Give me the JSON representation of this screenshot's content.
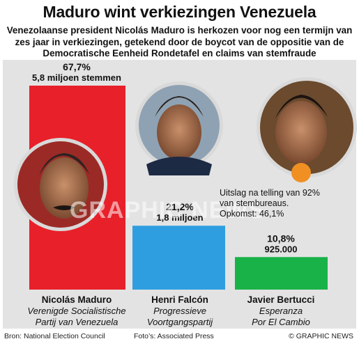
{
  "header": {
    "title": "Maduro wint verkiezingen Venezuela",
    "subtitle_lines": [
      "Venezolaanse president Nicolás Maduro is herkozen voor nog een termijn van",
      "zes jaar in verkiezingen, getekend door de boycot van de oppositie van de",
      "Democratische Eenheid Rondetafel en claims van stemfraude"
    ]
  },
  "chart_data": {
    "type": "bar",
    "categories": [
      "Nicolás Maduro",
      "Henri Falcón",
      "Javier Bertucci"
    ],
    "values": [
      67.7,
      21.2,
      10.8
    ],
    "value_labels": [
      "67,7%",
      "21,2%",
      "10,8%"
    ],
    "vote_labels": [
      "5,8 miljoen stemmen",
      "1,8 miljoen",
      "925.000"
    ],
    "parties": [
      [
        "Verenigde Socialistische",
        "Partij van Venezuela"
      ],
      [
        "Progressieve",
        "Voortgangspartij"
      ],
      [
        "Esperanza",
        "Por El Cambio"
      ]
    ],
    "colors": [
      "#e8202a",
      "#2e9ee0",
      "#19b248"
    ],
    "ylim": [
      0,
      67.7
    ]
  },
  "note": {
    "lines": [
      "Uitslag na telling van 92%",
      "van stembureaus.",
      "Opkomst: 46,1%"
    ]
  },
  "watermark": "GRAPHIC NEWS",
  "footer": {
    "source": "Bron: National Election Council",
    "photos": "Foto’s: Associated Press",
    "copyright": "© GRAPHIC NEWS"
  }
}
